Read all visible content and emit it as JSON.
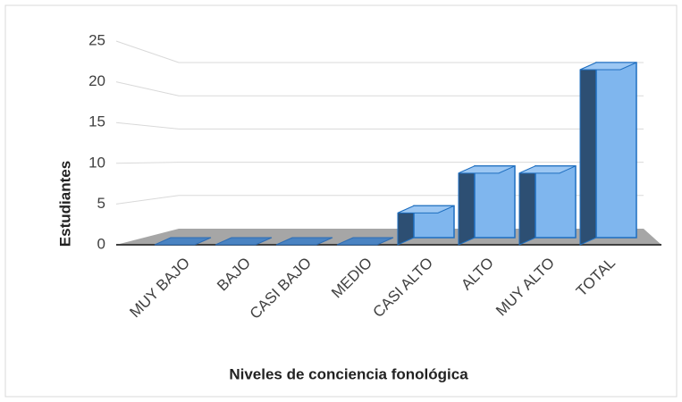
{
  "chart_data": {
    "type": "bar3d",
    "categories": [
      "MUY BAJO",
      "BAJO",
      "CASI BAJO",
      "MEDIO",
      "CASI ALTO",
      "ALTO",
      "MUY ALTO",
      "TOTAL"
    ],
    "values": [
      0,
      0,
      0,
      0,
      4,
      9,
      9,
      22
    ],
    "color": "#7fb6ee",
    "ylim": [
      0,
      25
    ],
    "yticks": [
      0,
      5,
      10,
      15,
      20,
      25
    ],
    "grid": true,
    "xlabel": "Niveles de conciencia fonológica",
    "ylabel": "Estudiantes"
  }
}
